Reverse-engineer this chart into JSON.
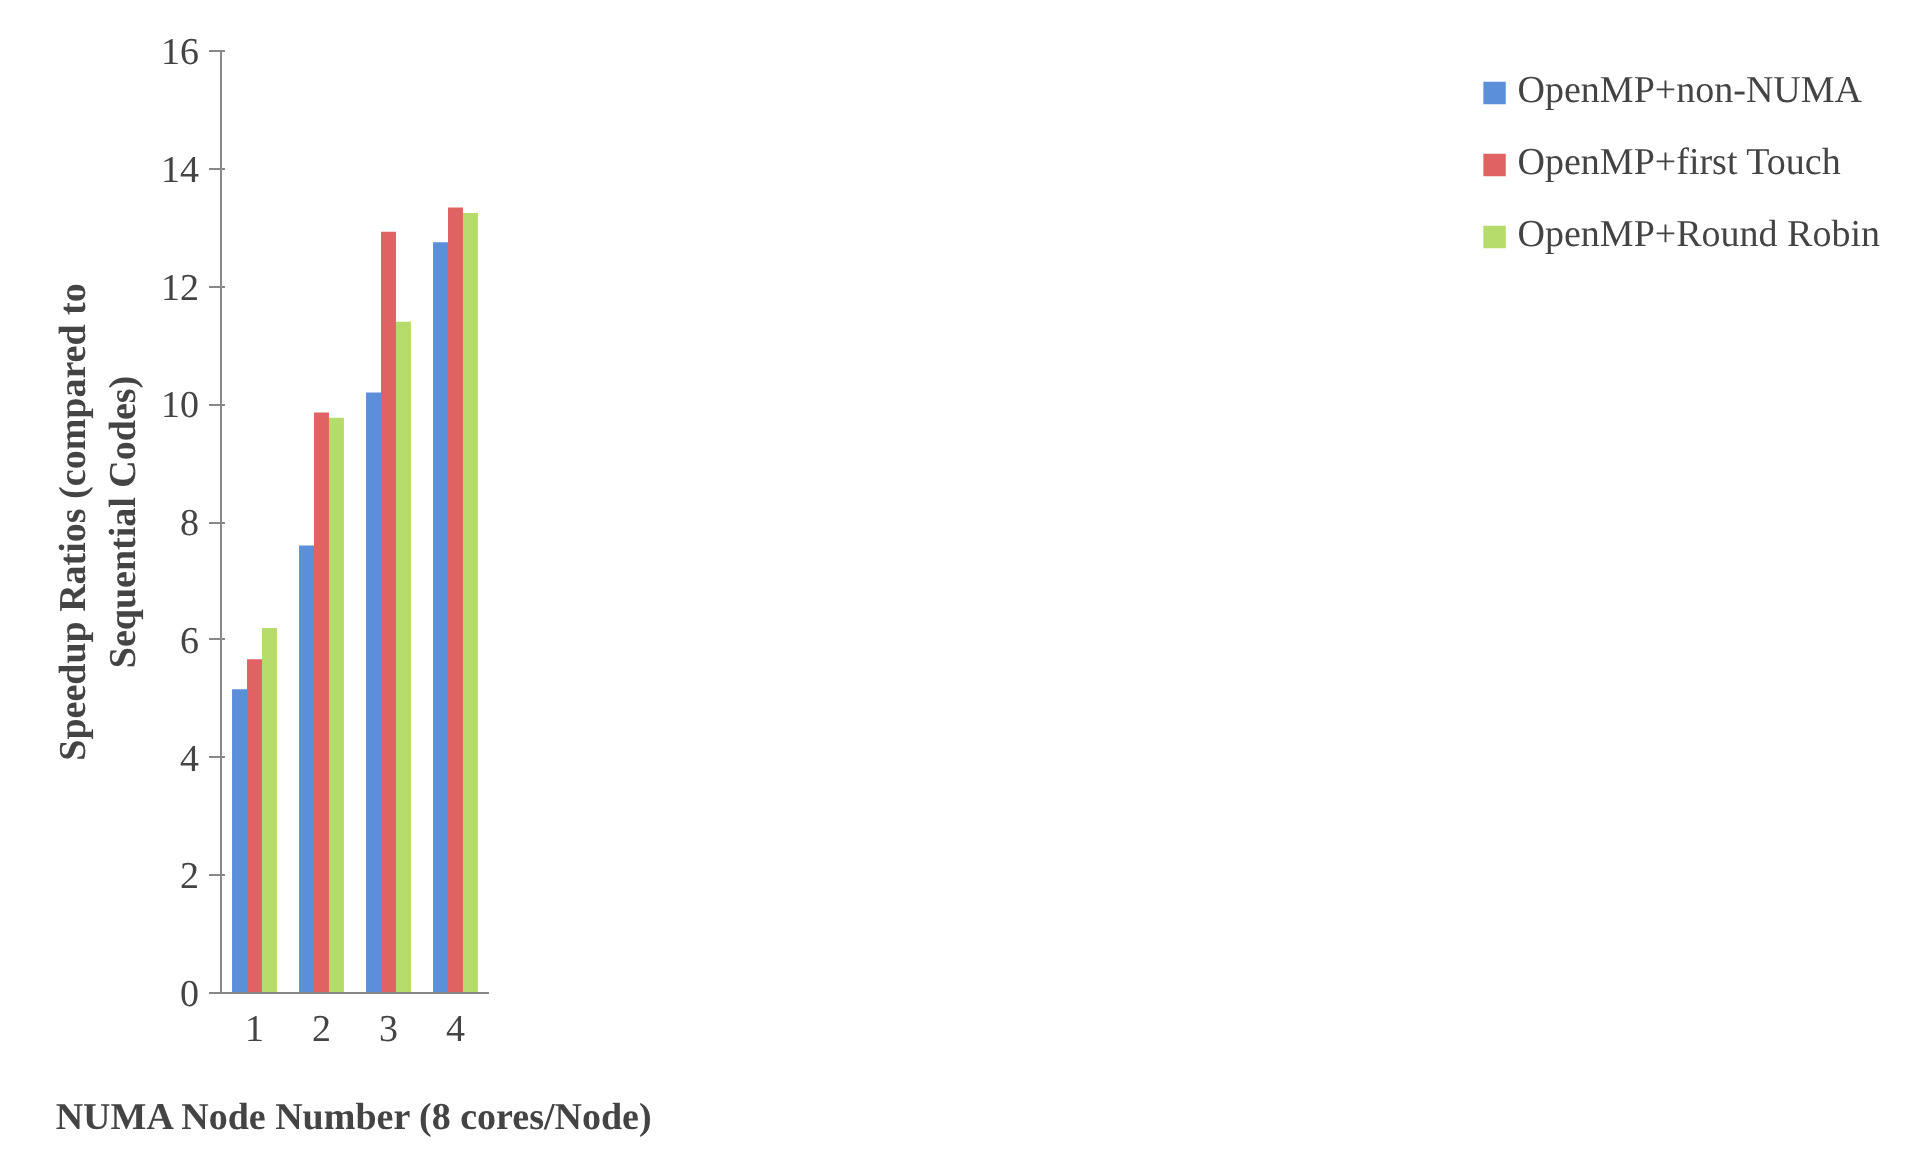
{
  "chart_data": {
    "type": "bar",
    "xlabel": "NUMA Node Number (8 cores/Node)",
    "ylabel": "Speedup Ratios (compared to Sequential Codes)",
    "categories": [
      "1",
      "2",
      "3",
      "4"
    ],
    "series": [
      {
        "name": "OpenMP+non-NUMA",
        "color": "#5b8fd9",
        "values": [
          5.16,
          7.6,
          10.2,
          12.75
        ]
      },
      {
        "name": "OpenMP+first Touch",
        "color": "#e06262",
        "values": [
          5.67,
          9.86,
          12.93,
          13.34
        ]
      },
      {
        "name": "OpenMP+Round Robin",
        "color": "#b5dc6a",
        "values": [
          6.2,
          9.77,
          11.4,
          13.25
        ]
      }
    ],
    "ylim": [
      0,
      16
    ],
    "yticks": [
      0,
      2,
      4,
      6,
      8,
      10,
      12,
      14,
      16
    ],
    "grid": false,
    "legend": "right"
  }
}
